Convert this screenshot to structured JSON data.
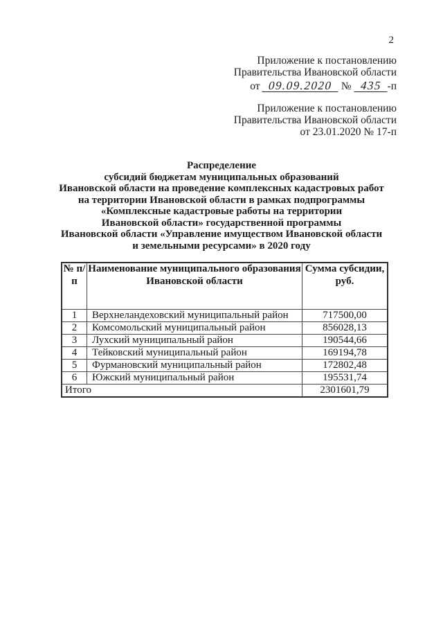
{
  "page": {
    "number": "2"
  },
  "appendix_current": {
    "line1": "Приложение к постановлению",
    "line2": "Правительства Ивановской области",
    "prefix": "от",
    "date_value": "09.09.2020",
    "number_sign": "№",
    "number_value": "435",
    "suffix": "-п"
  },
  "appendix_original": {
    "line1": "Приложение к постановлению",
    "line2": "Правительства Ивановской области",
    "line3": "от 23.01.2020 № 17-п"
  },
  "title": {
    "line1": "Распределение",
    "line2": "субсидий бюджетам муниципальных образований",
    "line3": "Ивановской области на проведение комплексных кадастровых работ",
    "line4": "на территории Ивановской области в рамках подпрограммы",
    "line5": "«Комплексные кадастровые работы на территории",
    "line6": "Ивановской области» государственной программы",
    "line7": "Ивановской области «Управление имуществом Ивановской области",
    "line8": "и земельными ресурсами» в 2020 году"
  },
  "table": {
    "headers": {
      "num": "№ п/п",
      "name": "Наименование муниципального образования Ивановской области",
      "sum": "Сумма субсидии, руб."
    },
    "rows": [
      {
        "num": "1",
        "name": "Верхнеландеховский муниципальный район",
        "sum": "717500,00"
      },
      {
        "num": "2",
        "name": "Комсомольский муниципальный район",
        "sum": "856028,13"
      },
      {
        "num": "3",
        "name": "Лухский муниципальный район",
        "sum": "190544,66"
      },
      {
        "num": "4",
        "name": "Тейковский муниципальный район",
        "sum": "169194,78"
      },
      {
        "num": "5",
        "name": "Фурмановский муниципальный район",
        "sum": "172802,48"
      },
      {
        "num": "6",
        "name": "Южский муниципальный район",
        "sum": "195531,74"
      }
    ],
    "total": {
      "label": "Итого",
      "sum": "2301601,79"
    }
  }
}
